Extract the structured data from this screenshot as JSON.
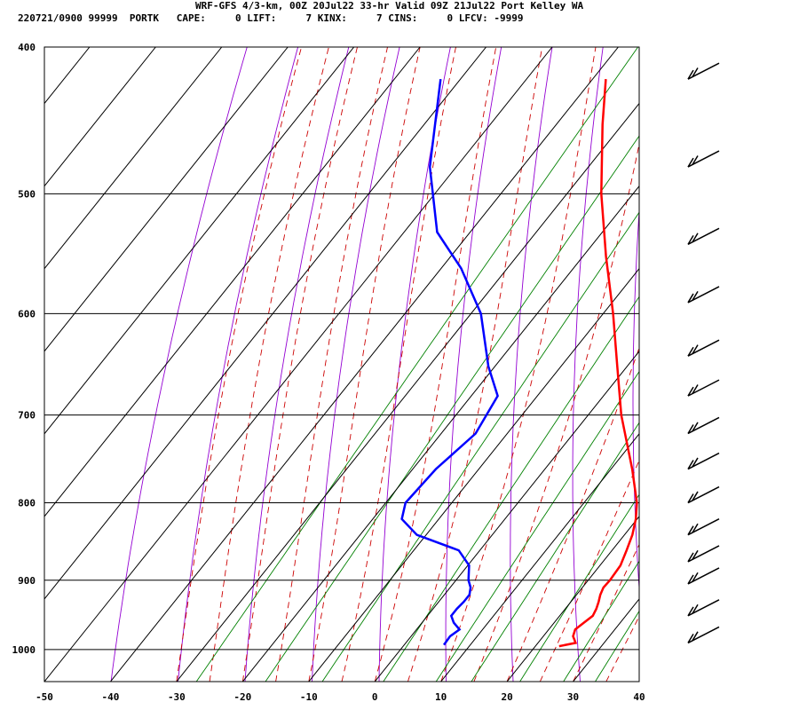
{
  "header": {
    "title": "WRF-GFS 4/3-km, 00Z 20Jul22 33-hr Valid 09Z 21Jul22 Port Kelley WA",
    "info": "220721/0900 99999  PORTK   CAPE:     0 LIFT:     7 KINX:     7 CINS:     0 LFCV: -9999"
  },
  "colors": {
    "temperature": "#ff0000",
    "dewpoint": "#0000ff",
    "isotherm_grid": "#000000",
    "dry_adiabat": "#9400d3",
    "moist_adiabat": "#cc0000",
    "mixing_ratio": "#008000",
    "wind_barb": "#000000"
  },
  "chart_data": {
    "type": "line",
    "title": "",
    "xlabel": "",
    "ylabel": "",
    "xlim": [
      -50,
      40
    ],
    "ylim": [
      1050,
      400
    ],
    "y_scale": "log-pressure",
    "x_ticks": [
      -50,
      -40,
      -30,
      -20,
      -10,
      0,
      10,
      20,
      30,
      40
    ],
    "x_tick_labels": [
      "-50",
      "-40",
      "-30",
      "-20",
      "-10",
      "0",
      "10",
      "20",
      "30",
      "40"
    ],
    "y_ticks": [
      400,
      500,
      600,
      700,
      800,
      900,
      1000
    ],
    "y_tick_labels": [
      "400",
      "500",
      "600",
      "700",
      "800",
      "900",
      "1000"
    ],
    "grid": true,
    "series": [
      {
        "key": "temperature",
        "pressure": [
          995,
          990,
          985,
          980,
          970,
          960,
          950,
          940,
          930,
          920,
          910,
          900,
          880,
          860,
          840,
          820,
          800,
          760,
          700,
          650,
          600,
          550,
          500,
          450,
          420
        ],
        "values": [
          23.6,
          25.7,
          25.1,
          24.5,
          24.0,
          24.5,
          25.0,
          24.7,
          24.2,
          23.6,
          23.2,
          23.3,
          23.1,
          22.2,
          21.2,
          19.8,
          18.0,
          13.2,
          5.0,
          -1.5,
          -8.5,
          -16.5,
          -24.8,
          -33.0,
          -38.0
        ]
      },
      {
        "key": "dewpoint",
        "pressure": [
          993,
          980,
          970,
          960,
          950,
          940,
          930,
          920,
          910,
          900,
          880,
          860,
          840,
          820,
          800,
          760,
          720,
          680,
          650,
          600,
          560,
          530,
          480,
          420
        ],
        "values": [
          6.0,
          5.9,
          6.5,
          4.8,
          3.6,
          3.6,
          3.8,
          3.8,
          3.1,
          1.9,
          0.2,
          -3.2,
          -11.4,
          -15.6,
          -17.0,
          -16.5,
          -14.8,
          -16.0,
          -21.0,
          -28.5,
          -37.0,
          -45.0,
          -54.0,
          -63.0
        ]
      }
    ],
    "wind_barbs_pressure": [
      420,
      480,
      540,
      590,
      640,
      680,
      720,
      760,
      800,
      840,
      875,
      905,
      950,
      990
    ]
  }
}
